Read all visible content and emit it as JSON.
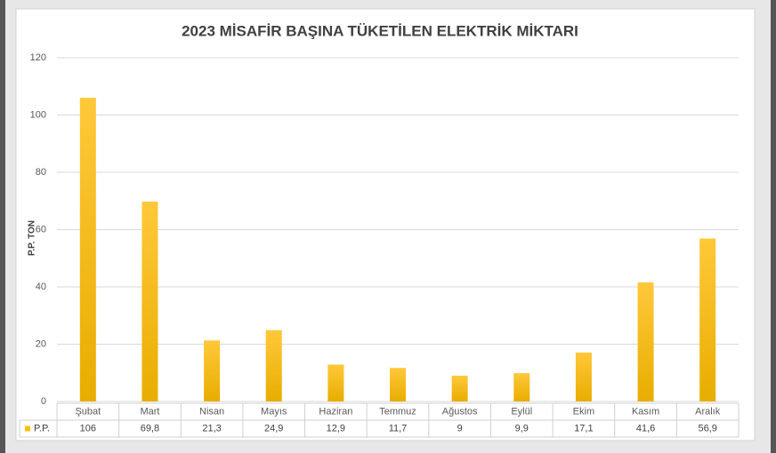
{
  "chart_data": {
    "type": "bar",
    "title": "2023 MİSAFİR BAŞINA TÜKETİLEN ELEKTRİK MİKTARI",
    "y_label": "P.P. TON",
    "categories": [
      "Şubat",
      "Mart",
      "Nisan",
      "Mayıs",
      "Haziran",
      "Temmuz",
      "Ağustos",
      "Eylül",
      "Ekim",
      "Kasım",
      "Aralık"
    ],
    "series": [
      {
        "name": "P.P.",
        "color": "#ffc000",
        "values": [
          106,
          69.8,
          21.3,
          24.9,
          12.9,
          11.7,
          9,
          9.9,
          17.1,
          41.6,
          56.9
        ],
        "value_labels": [
          "106",
          "69,8",
          "21,3",
          "24,9",
          "12,9",
          "11,7",
          "9",
          "9,9",
          "17,1",
          "41,6",
          "56,9"
        ]
      }
    ],
    "ylim": [
      0,
      120
    ],
    "yticks": [
      0,
      20,
      40,
      60,
      80,
      100,
      120
    ],
    "grid": true,
    "data_table": true
  }
}
